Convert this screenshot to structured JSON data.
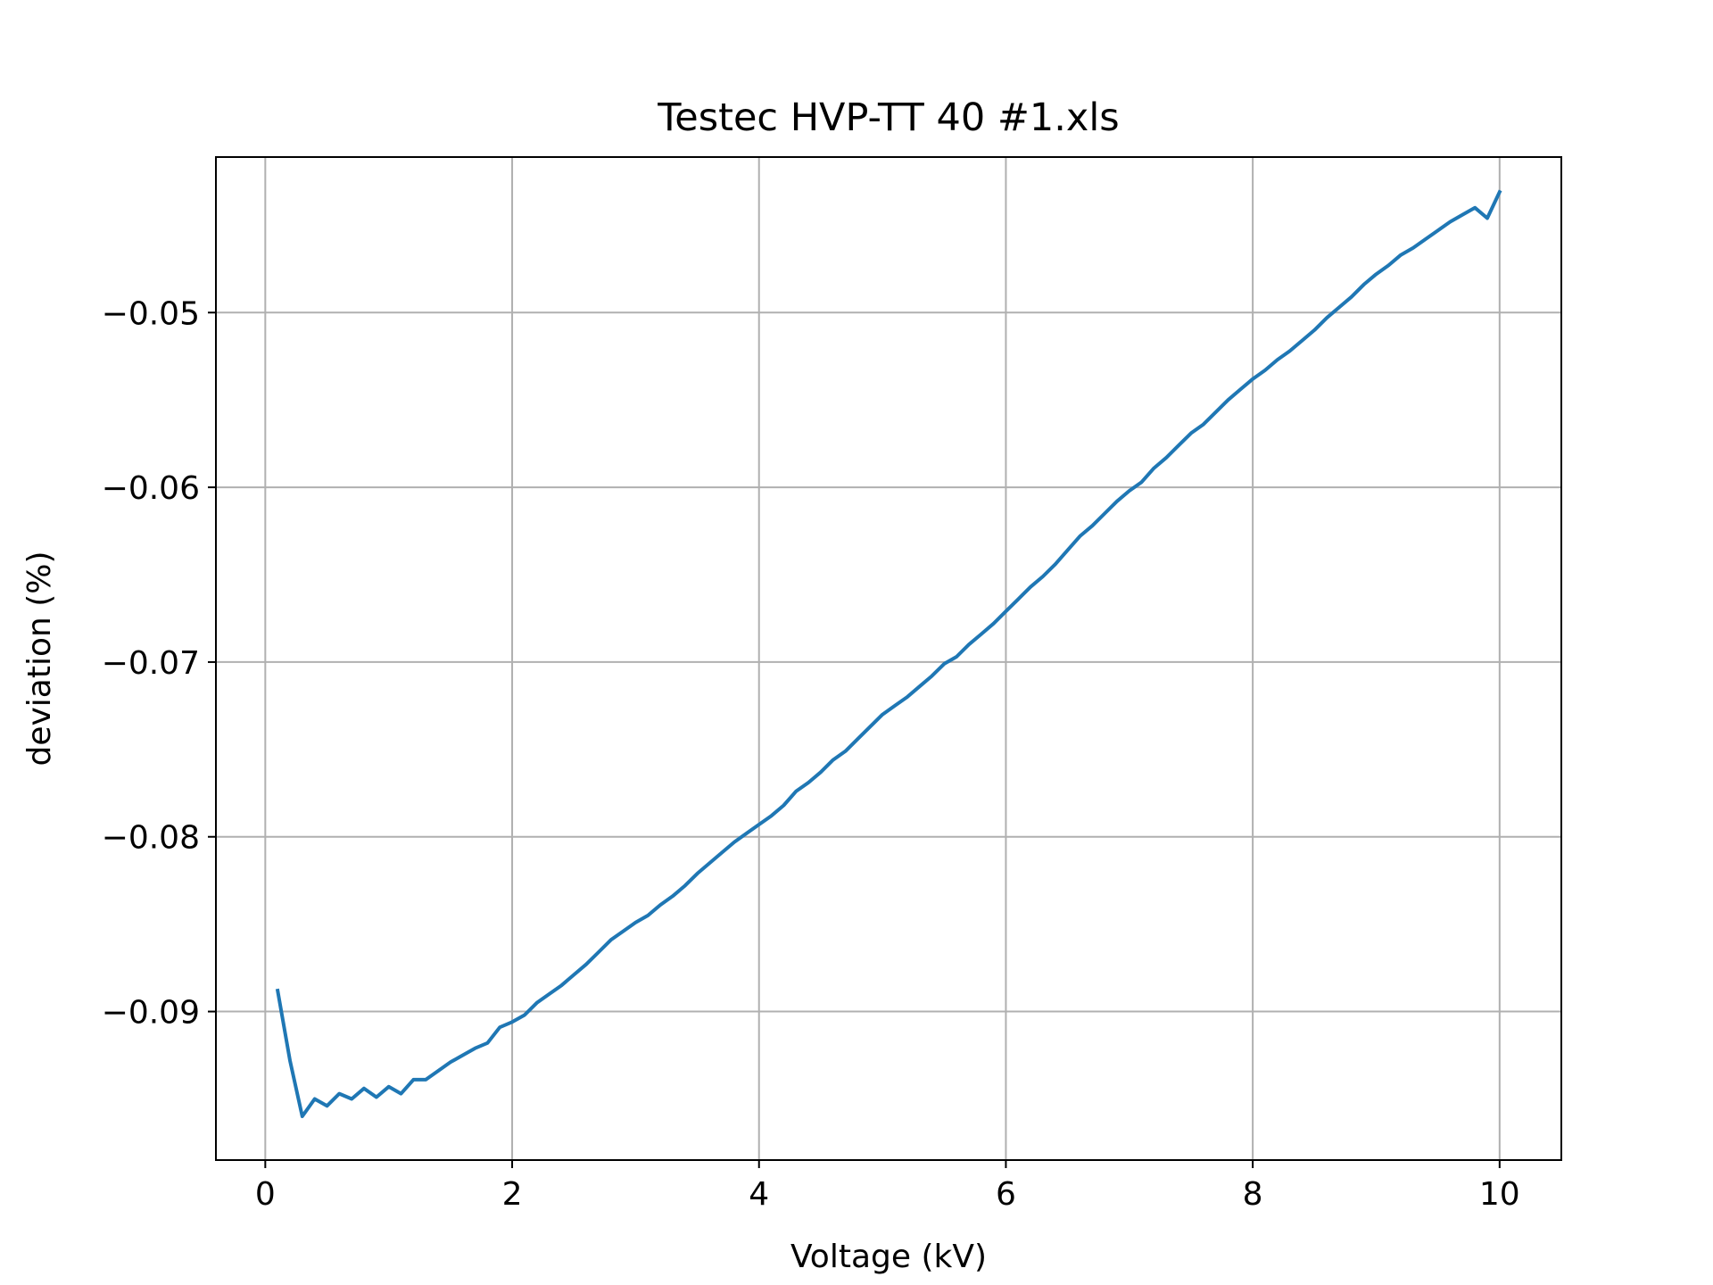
{
  "colors": {
    "line": "#1f77b4",
    "grid": "#b0b0b0",
    "axes": "#000000",
    "background": "#ffffff"
  },
  "chart_data": {
    "type": "line",
    "title": "Testec HVP-TT 40 #1.xls",
    "xlabel": "Voltage (kV)",
    "ylabel": "deviation (%)",
    "xlim": [
      -0.4,
      10.5
    ],
    "ylim": [
      -0.0985,
      -0.0411
    ],
    "grid": true,
    "xticks": [
      0,
      2,
      4,
      6,
      8,
      10
    ],
    "xtick_labels": [
      "0",
      "2",
      "4",
      "6",
      "8",
      "10"
    ],
    "yticks": [
      -0.09,
      -0.08,
      -0.07,
      -0.06,
      -0.05
    ],
    "ytick_labels": [
      "−0.09",
      "−0.08",
      "−0.07",
      "−0.06",
      "−0.05"
    ],
    "series": [
      {
        "x": [
          0.1,
          0.2,
          0.3,
          0.4,
          0.5,
          0.6,
          0.7,
          0.8,
          0.9,
          1.0,
          1.1,
          1.2,
          1.3,
          1.4,
          1.5,
          1.6,
          1.7,
          1.8,
          1.9,
          2.0,
          2.1,
          2.2,
          2.3,
          2.4,
          2.5,
          2.6,
          2.7,
          2.8,
          2.9,
          3.0,
          3.1,
          3.2,
          3.3,
          3.4,
          3.5,
          3.6,
          3.7,
          3.8,
          3.9,
          4.0,
          4.1,
          4.2,
          4.3,
          4.4,
          4.5,
          4.6,
          4.7,
          4.8,
          4.9,
          5.0,
          5.1,
          5.2,
          5.3,
          5.4,
          5.5,
          5.6,
          5.7,
          5.8,
          5.9,
          6.0,
          6.1,
          6.2,
          6.3,
          6.4,
          6.5,
          6.6,
          6.7,
          6.8,
          6.9,
          7.0,
          7.1,
          7.2,
          7.3,
          7.4,
          7.5,
          7.6,
          7.7,
          7.8,
          7.9,
          8.0,
          8.1,
          8.2,
          8.3,
          8.4,
          8.5,
          8.6,
          8.7,
          8.8,
          8.9,
          9.0,
          9.1,
          9.2,
          9.3,
          9.4,
          9.5,
          9.6,
          9.7,
          9.8,
          9.9,
          10.0
        ],
        "y": [
          -0.0888,
          -0.0928,
          -0.096,
          -0.095,
          -0.0954,
          -0.0947,
          -0.095,
          -0.0944,
          -0.0949,
          -0.0943,
          -0.0947,
          -0.0939,
          -0.0939,
          -0.0934,
          -0.0929,
          -0.0925,
          -0.0921,
          -0.0918,
          -0.0909,
          -0.0906,
          -0.0902,
          -0.0895,
          -0.089,
          -0.0885,
          -0.0879,
          -0.0873,
          -0.0866,
          -0.0859,
          -0.0854,
          -0.0849,
          -0.0845,
          -0.0839,
          -0.0834,
          -0.0828,
          -0.0821,
          -0.0815,
          -0.0809,
          -0.0803,
          -0.0798,
          -0.0793,
          -0.0788,
          -0.0782,
          -0.0774,
          -0.0769,
          -0.0763,
          -0.0756,
          -0.0751,
          -0.0744,
          -0.0737,
          -0.073,
          -0.0725,
          -0.072,
          -0.0714,
          -0.0708,
          -0.0701,
          -0.0697,
          -0.069,
          -0.0684,
          -0.0678,
          -0.0671,
          -0.0664,
          -0.0657,
          -0.0651,
          -0.0644,
          -0.0636,
          -0.0628,
          -0.0622,
          -0.0615,
          -0.0608,
          -0.0602,
          -0.0597,
          -0.0589,
          -0.0583,
          -0.0576,
          -0.0569,
          -0.0564,
          -0.0557,
          -0.055,
          -0.0544,
          -0.0538,
          -0.0533,
          -0.0527,
          -0.0522,
          -0.0516,
          -0.051,
          -0.0503,
          -0.0497,
          -0.0491,
          -0.0484,
          -0.0478,
          -0.0473,
          -0.0467,
          -0.0463,
          -0.0458,
          -0.0453,
          -0.0448,
          -0.0444,
          -0.044,
          -0.0446,
          -0.0431
        ]
      }
    ]
  }
}
